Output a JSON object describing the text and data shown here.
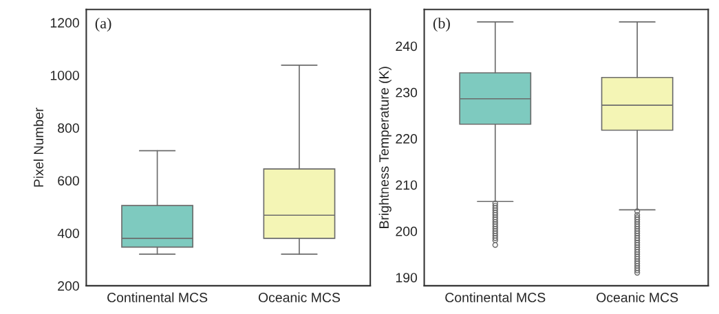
{
  "chart_data": [
    {
      "type": "box",
      "ylabel": "Pixel Number",
      "annotations": [
        "(a)"
      ],
      "categories": [
        "Continental MCS",
        "Oceanic MCS"
      ],
      "colors": [
        "#7ecabf",
        "#f4f5b5"
      ],
      "boxes": [
        {
          "low": 320,
          "q1": 347,
          "median": 380,
          "q3": 505,
          "high": 713
        },
        {
          "low": 320,
          "q1": 380,
          "median": 468,
          "q3": 644,
          "high": 1038
        }
      ],
      "ylim": [
        200,
        1250
      ],
      "yticks": [
        200,
        400,
        600,
        800,
        1000,
        1200
      ],
      "grid": false
    },
    {
      "type": "box",
      "ylabel": "Brightness Temperature (K)",
      "annotations": [
        "(b)"
      ],
      "categories": [
        "Continental MCS",
        "Oceanic MCS"
      ],
      "colors": [
        "#7ecabf",
        "#f4f5b5"
      ],
      "boxes": [
        {
          "low": 206.4,
          "q1": 223.1,
          "median": 228.6,
          "q3": 234.2,
          "high": 245.2,
          "outliers": [
            206.0,
            205.5,
            205.0,
            204.5,
            204.0,
            203.5,
            203.0,
            202.5,
            202.0,
            201.5,
            201.0,
            200.5,
            200.0,
            199.5,
            199.0,
            198.5,
            198.0,
            197.0
          ]
        },
        {
          "low": 204.6,
          "q1": 221.8,
          "median": 227.2,
          "q3": 233.2,
          "high": 245.2,
          "outliers": [
            204.3,
            203.5,
            203.0,
            202.5,
            202.0,
            201.5,
            201.0,
            200.5,
            200.0,
            199.5,
            199.0,
            198.5,
            198.0,
            197.5,
            197.0,
            196.5,
            196.0,
            195.5,
            195.0,
            194.5,
            194.0,
            193.5,
            193.0,
            192.5,
            192.0,
            191.5,
            191.0
          ]
        }
      ],
      "ylim": [
        188.2,
        247.9
      ],
      "yticks": [
        190,
        200,
        210,
        220,
        230,
        240
      ],
      "grid": false
    }
  ]
}
